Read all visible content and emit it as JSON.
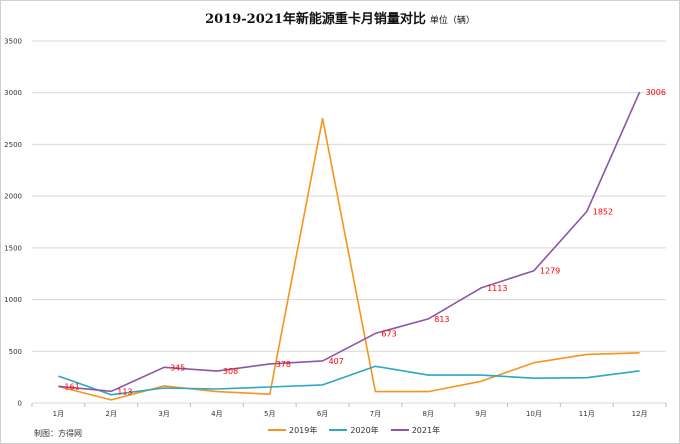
{
  "chart_data": {
    "type": "line",
    "title": "2019-2021年新能源重卡月销量对比",
    "unit": "单位（辆）",
    "categories": [
      "1月",
      "2月",
      "3月",
      "4月",
      "5月",
      "6月",
      "7月",
      "8月",
      "9月",
      "10月",
      "11月",
      "12月"
    ],
    "ylim": [
      0,
      3500
    ],
    "yticks": [
      0,
      500,
      1000,
      1500,
      2000,
      2500,
      3000,
      3500
    ],
    "grid": true,
    "legend_position": "bottom",
    "series": [
      {
        "name": "2019年",
        "color": "#f7941d",
        "values": [
          160,
          30,
          165,
          110,
          85,
          2750,
          110,
          110,
          210,
          390,
          470,
          485
        ],
        "labeled": false
      },
      {
        "name": "2020年",
        "color": "#2aa8c4",
        "values": [
          260,
          80,
          145,
          135,
          155,
          175,
          355,
          270,
          270,
          240,
          245,
          310
        ],
        "labeled": false
      },
      {
        "name": "2021年",
        "color": "#8c56a8",
        "values": [
          161,
          113,
          345,
          308,
          378,
          407,
          673,
          813,
          1113,
          1279,
          1852,
          3006
        ],
        "labeled": true
      }
    ],
    "label_color": "#ff0000"
  },
  "credit": "制图：方得网"
}
